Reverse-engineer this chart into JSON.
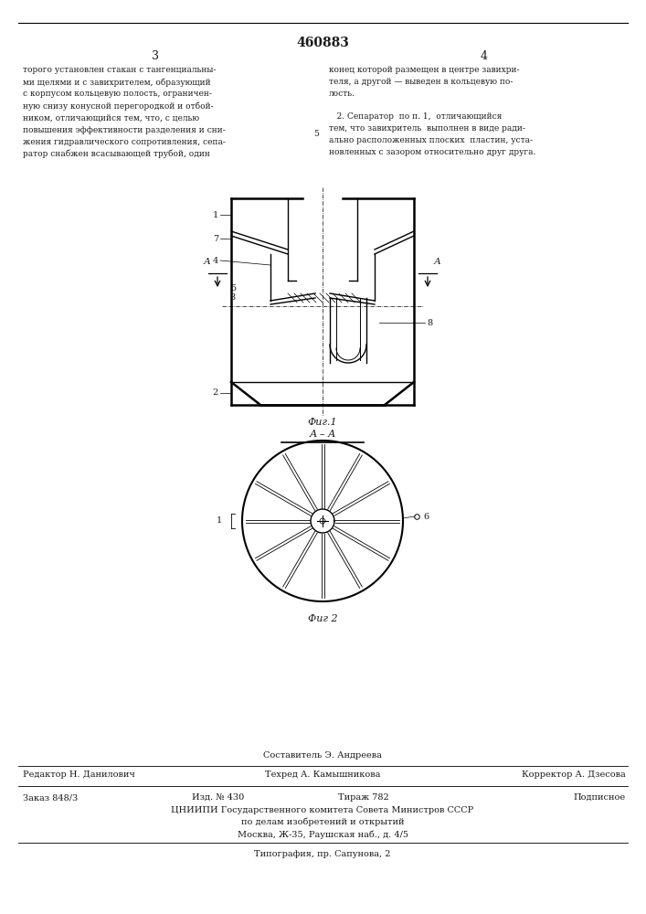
{
  "patent_number": "460883",
  "page_left": "3",
  "page_right": "4",
  "text_left": "торого установлен стакан с тангенциальны-\nми щелями и с завихрителем, образующий\nс корпусом кольцевую полость, ограничен-\nную снизу конусной перегородкой и отбой-\nником, отличающийся тем, что, с целью\nповышения эффективности разделения и сни-\nжения гидравлического сопротивления, сепа-\nратор снабжен всасывающей трубой, один",
  "line_number_left": "5",
  "text_right": "конец которой размещен в центре завихри-\nтеля, а другой — выведен в кольцевую по-\nлость.\n\n   2. Сепаратор  по п. 1,  отличающийся\nтем, что завихритель  выполнен в виде ради-\nально расположенных плоских  пластин, уста-\nновленных с зазором относительно друг друга.",
  "fig1_caption": "Фиг.1",
  "fig2_caption": "Фиг 2",
  "section_label": "А – А",
  "footer_compiler": "Составитель Э. Андреева",
  "footer_editor": "Редактор Н. Данилович",
  "footer_tech": "Техред А. Камышникова",
  "footer_corrector": "Корректор А. Дзесова",
  "footer_order": "Заказ 848/3",
  "footer_izd": "Изд. № 430",
  "footer_tirazh": "Тираж 782",
  "footer_podpisnoe": "Подписное",
  "footer_tsniipi": "ЦНИИПИ Государственного комитета Совета Министров СССР",
  "footer_dela": "по делам изобретений и открытий",
  "footer_address": "Москва, Ж-35, Раушская наб., д. 4/5",
  "footer_tipografia": "Типография, пр. Сапунова, 2",
  "bg_color": "#ffffff",
  "line_color": "#000000",
  "text_color": "#1a1a1a"
}
